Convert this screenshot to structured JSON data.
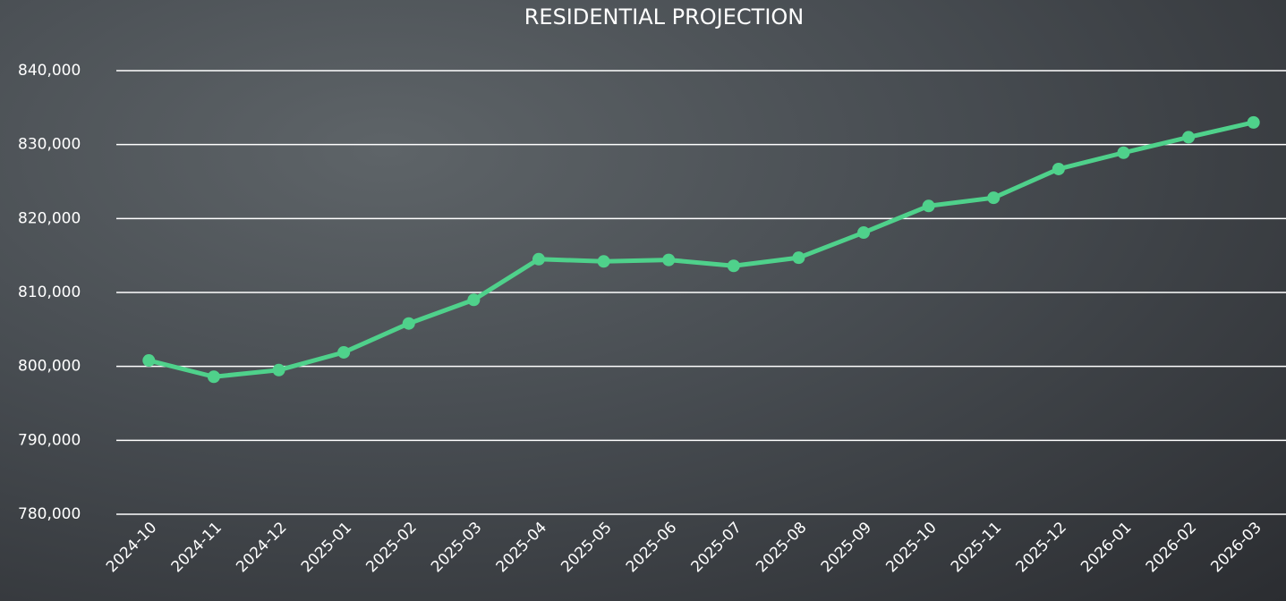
{
  "chart_data": {
    "type": "line",
    "title": "RESIDENTIAL PROJECTION",
    "categories": [
      "2024-10",
      "2024-11",
      "2024-12",
      "2025-01",
      "2025-02",
      "2025-03",
      "2025-04",
      "2025-05",
      "2025-06",
      "2025-07",
      "2025-08",
      "2025-09",
      "2025-10",
      "2025-11",
      "2025-12",
      "2026-01",
      "2026-02",
      "2026-03"
    ],
    "series": [
      {
        "name": "Residential",
        "color": "#4fd18b",
        "values": [
          800800,
          798600,
          799500,
          801900,
          805800,
          809000,
          814500,
          814200,
          814400,
          813600,
          814700,
          818100,
          821700,
          822800,
          826700,
          828900,
          831000,
          833000
        ]
      }
    ],
    "ylim": [
      780000,
      840000
    ],
    "yticks": [
      {
        "value": 780000,
        "label": "780,000"
      },
      {
        "value": 790000,
        "label": "790,000"
      },
      {
        "value": 800000,
        "label": "800,000"
      },
      {
        "value": 810000,
        "label": "810,000"
      },
      {
        "value": 820000,
        "label": "820,000"
      },
      {
        "value": 830000,
        "label": "830,000"
      },
      {
        "value": 840000,
        "label": "840,000"
      }
    ],
    "grid": true
  }
}
